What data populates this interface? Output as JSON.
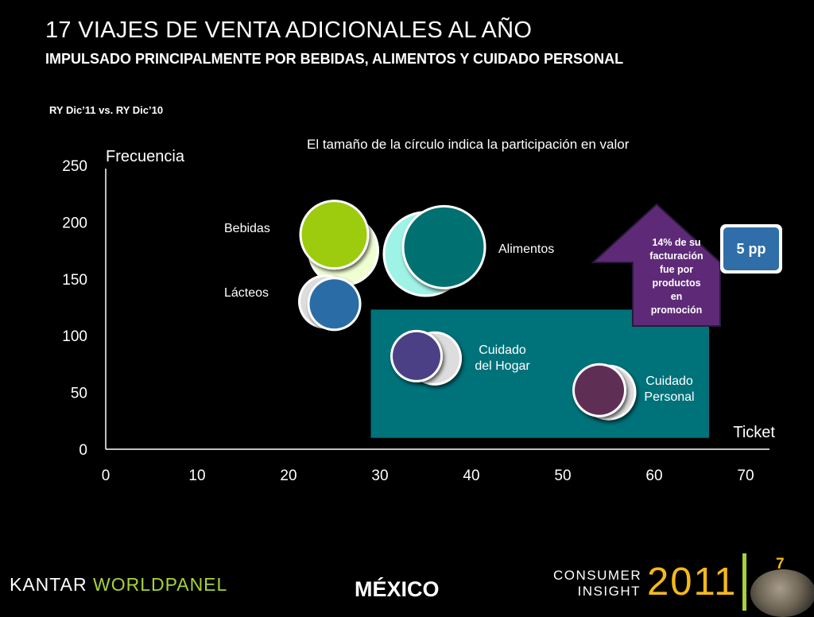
{
  "header": {
    "title": "17 VIAJES DE VENTA  ADICIONALES AL AÑO",
    "subtitle": "IMPULSADO PRINCIPALMENTE POR BEBIDAS, ALIMENTOS Y CUIDADO PERSONAL",
    "period": "RY Dic’11 vs. RY  Dic’10"
  },
  "note": "El tamaño de la círculo indica la participación en valor",
  "chart_data": {
    "type": "scatter",
    "xlabel": "Ticket",
    "ylabel": "Frecuencia",
    "xlim": [
      0,
      70
    ],
    "ylim": [
      0,
      250
    ],
    "x_ticks": [
      0,
      10,
      20,
      30,
      40,
      50,
      60,
      70
    ],
    "y_ticks": [
      0,
      50,
      100,
      150,
      200,
      250
    ],
    "grid": false,
    "series": [
      {
        "name": "Bebidas",
        "color": "#9ccc0c",
        "prev_color": "#f0ffd2",
        "prev": {
          "x": 26,
          "y": 175,
          "size": 45
        },
        "curr": {
          "x": 25,
          "y": 189,
          "size": 44
        }
      },
      {
        "name": "Alimentos",
        "color": "#007070",
        "prev_color": "#9ff2e6",
        "prev": {
          "x": 35,
          "y": 172,
          "size": 54
        },
        "curr": {
          "x": 37,
          "y": 178,
          "size": 53
        }
      },
      {
        "name": "Lácteos",
        "color": "#2c6da6",
        "prev_color": "#dddddd",
        "prev": {
          "x": 24,
          "y": 130,
          "size": 34
        },
        "curr": {
          "x": 25,
          "y": 128,
          "size": 34
        }
      },
      {
        "name": "Cuidado del Hogar",
        "color": "#4b3f86",
        "prev_color": "#dddddd",
        "prev": {
          "x": 36,
          "y": 80,
          "size": 34
        },
        "curr": {
          "x": 34,
          "y": 82,
          "size": 33
        }
      },
      {
        "name": "Cuidado Personal",
        "color": "#5e2d55",
        "prev_color": "#dddddd",
        "prev": {
          "x": 55,
          "y": 50,
          "size": 35
        },
        "curr": {
          "x": 54,
          "y": 52,
          "size": 34
        }
      }
    ],
    "point_labels": [
      {
        "text": "Bebidas",
        "color": "#ffffff"
      },
      {
        "text": "Alimentos",
        "color": "#ffffff"
      },
      {
        "text": "Lácteos",
        "color": "#ffffff"
      },
      {
        "text": "Cuidado del Hogar",
        "line1": "Cuidado",
        "line2": "del Hogar",
        "color": "#ffffff"
      },
      {
        "text": "Cuidado Personal",
        "line1": "Cuidado",
        "line2": "Personal",
        "color": "#ffffff"
      }
    ],
    "highlight_region": {
      "x": [
        29,
        66
      ],
      "y": [
        10,
        123
      ],
      "color": "#00727a"
    },
    "callout": {
      "lines": [
        "14% de su",
        "facturación",
        "fue por",
        "productos",
        "en",
        "promoción"
      ],
      "color": "#5e2a78"
    },
    "badge": {
      "text": "5 pp",
      "color": "#2f6ea8"
    }
  },
  "footer": {
    "brand_a": "KANTAR",
    "brand_b": "WORLDPANEL",
    "country": "MÉXICO",
    "ci_line1": "CONSUMER",
    "ci_line2": "INSIGHT",
    "year": "2011",
    "page": "7"
  }
}
